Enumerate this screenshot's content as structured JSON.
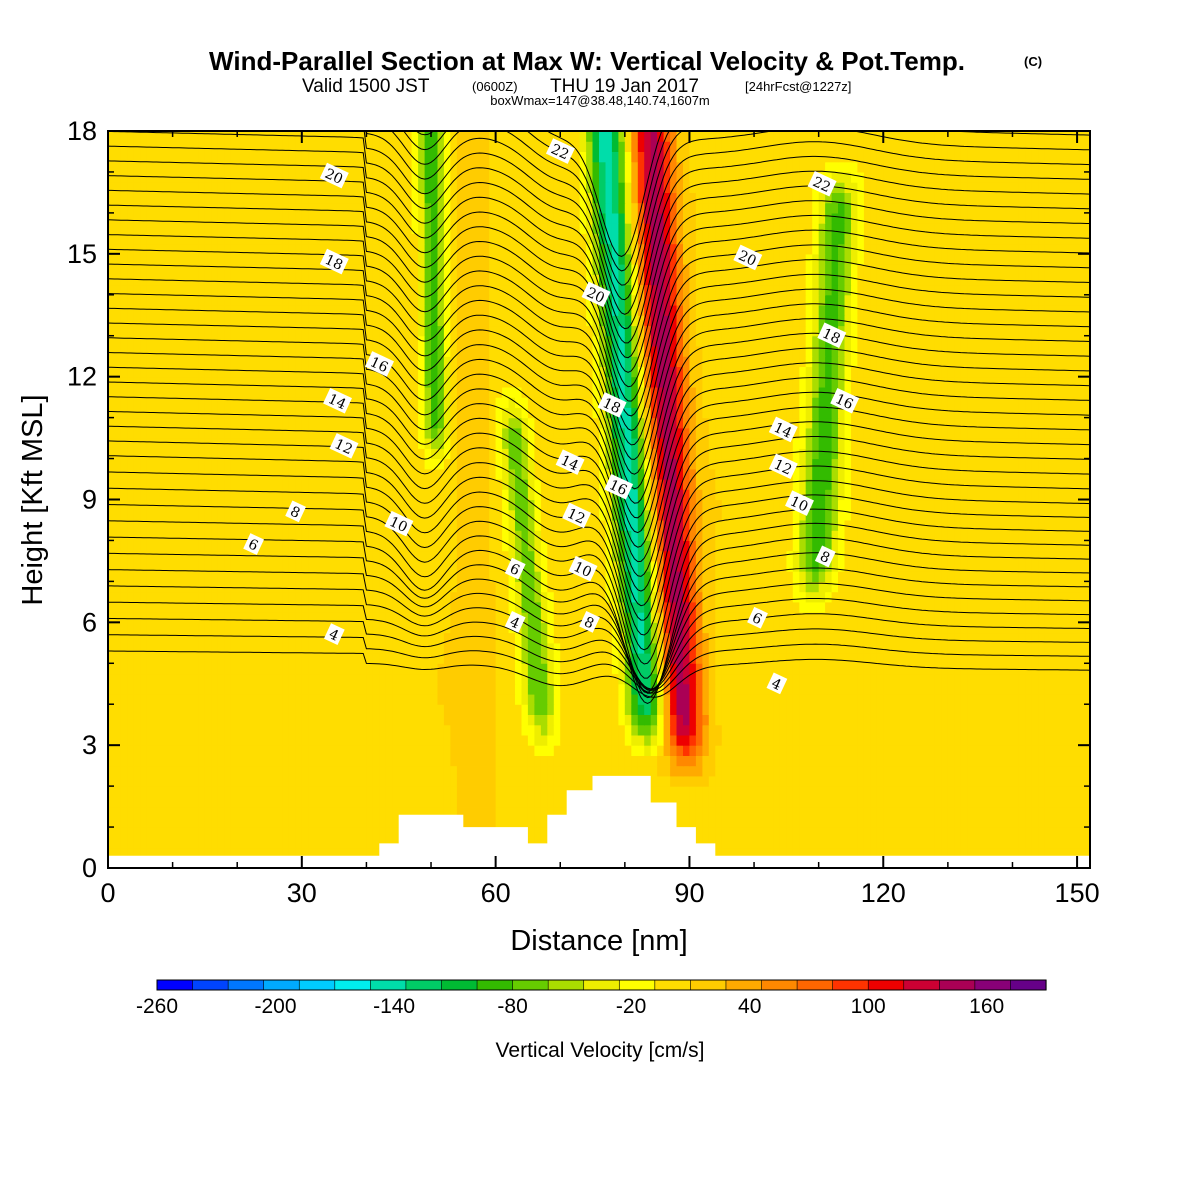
{
  "title": {
    "main": "Wind-Parallel Section at Max W: Vertical Velocity & Pot.Temp.",
    "copyright": "(C)",
    "valid_prefix": "Valid 1500 JST",
    "valid_utc": "(0600Z)",
    "valid_date": "THU 19 Jan 2017",
    "forecast": "[24hrFcst@1227z]",
    "boxline": "boxWmax=147@38.48,140.74,1607m"
  },
  "colors": {
    "background_field": "#FFCC00",
    "contour": "#000000",
    "terrain": "#FFFFFF"
  },
  "chart_data": {
    "type": "heatmap",
    "xlabel": "Distance [nm]",
    "ylabel": "Height [Kft MSL]",
    "xlim": [
      0,
      152
    ],
    "ylim": [
      0,
      18
    ],
    "x_ticks": [
      0,
      30,
      60,
      90,
      120,
      150
    ],
    "y_ticks": [
      0,
      3,
      6,
      9,
      12,
      15,
      18
    ],
    "colorbar": {
      "title": "Vertical Velocity [cm/s]",
      "min": -260,
      "max": 190,
      "step": 20,
      "tick_values": [
        -260,
        -200,
        -140,
        -80,
        -20,
        40,
        100,
        160
      ],
      "tick_labels": [
        "-260",
        "-200",
        "-140",
        "-80",
        "-20",
        "40",
        "100",
        "160"
      ],
      "colors": [
        "#0000FF",
        "#0044FF",
        "#0077FF",
        "#00AAFF",
        "#00CCFF",
        "#00EEEE",
        "#00DDAA",
        "#00CC66",
        "#00BB33",
        "#33BB00",
        "#66CC00",
        "#AADD00",
        "#EEEE00",
        "#FFFF00",
        "#FFDD00",
        "#FFCC00",
        "#FFAA00",
        "#FF8800",
        "#FF6600",
        "#FF3300",
        "#EE0000",
        "#CC0033",
        "#AA0055",
        "#880077",
        "#660088"
      ]
    },
    "terrain": [
      [
        0,
        0.3
      ],
      [
        42,
        0.3
      ],
      [
        42,
        0.6
      ],
      [
        45,
        0.6
      ],
      [
        45,
        1.3
      ],
      [
        55,
        1.3
      ],
      [
        55,
        1.0
      ],
      [
        65,
        1.0
      ],
      [
        65,
        0.6
      ],
      [
        68,
        0.6
      ],
      [
        68,
        1.3
      ],
      [
        71,
        1.3
      ],
      [
        71,
        1.9
      ],
      [
        75,
        1.9
      ],
      [
        75,
        2.25
      ],
      [
        84,
        2.25
      ],
      [
        84,
        1.6
      ],
      [
        88,
        1.6
      ],
      [
        88,
        1.0
      ],
      [
        91,
        1.0
      ],
      [
        91,
        0.6
      ],
      [
        94,
        0.6
      ],
      [
        94,
        0.3
      ],
      [
        152,
        0.3
      ]
    ],
    "w_features": [
      {
        "x": 84,
        "z0": 3.5,
        "z1": 18,
        "x_lean": 0.35,
        "half_width": 3.2,
        "value": 190
      },
      {
        "x": 77,
        "z0": 4.0,
        "z1": 18,
        "x_lean": 0.45,
        "half_width": 3.0,
        "value": -130
      },
      {
        "x": 50,
        "z0": 11.0,
        "z1": 18,
        "x_lean": 0.1,
        "half_width": 2.0,
        "value": -70
      },
      {
        "x": 113,
        "z0": 7.5,
        "z1": 16,
        "x_lean": -0.4,
        "half_width": 3.0,
        "value": -70
      },
      {
        "x": 56,
        "z0": 1.5,
        "z1": 18,
        "x_lean": 0.05,
        "half_width": 2.6,
        "value": 55
      },
      {
        "x": 63,
        "z0": 4.0,
        "z1": 10.5,
        "x_lean": 0.6,
        "half_width": 2.4,
        "value": -55
      }
    ],
    "theta_levels": [
      4,
      6,
      8,
      10,
      12,
      14,
      16,
      18,
      20,
      22
    ],
    "contour_labels": [
      {
        "text": "22",
        "x": 70.0,
        "y": 17.5
      },
      {
        "text": "22",
        "x": 110.5,
        "y": 16.7
      },
      {
        "text": "20",
        "x": 35.0,
        "y": 16.9
      },
      {
        "text": "20",
        "x": 75.5,
        "y": 14.0
      },
      {
        "text": "20",
        "x": 99.0,
        "y": 14.9
      },
      {
        "text": "18",
        "x": 35.0,
        "y": 14.8
      },
      {
        "text": "18",
        "x": 78.0,
        "y": 11.3
      },
      {
        "text": "18",
        "x": 112.0,
        "y": 13.0
      },
      {
        "text": "16",
        "x": 42.0,
        "y": 12.3
      },
      {
        "text": "16",
        "x": 79.0,
        "y": 9.3
      },
      {
        "text": "16",
        "x": 114.0,
        "y": 11.4
      },
      {
        "text": "14",
        "x": 35.5,
        "y": 11.4
      },
      {
        "text": "14",
        "x": 71.5,
        "y": 9.9
      },
      {
        "text": "14",
        "x": 104.5,
        "y": 10.7
      },
      {
        "text": "12",
        "x": 36.5,
        "y": 10.3
      },
      {
        "text": "12",
        "x": 72.5,
        "y": 8.6
      },
      {
        "text": "12",
        "x": 104.5,
        "y": 9.8
      },
      {
        "text": "10",
        "x": 45.0,
        "y": 8.4
      },
      {
        "text": "10",
        "x": 73.5,
        "y": 7.3
      },
      {
        "text": "10",
        "x": 107.0,
        "y": 8.9
      },
      {
        "text": "8",
        "x": 29.0,
        "y": 8.7
      },
      {
        "text": "8",
        "x": 74.5,
        "y": 6.0
      },
      {
        "text": "8",
        "x": 111.0,
        "y": 7.6
      },
      {
        "text": "6",
        "x": 22.5,
        "y": 7.9
      },
      {
        "text": "6",
        "x": 63.0,
        "y": 7.3
      },
      {
        "text": "6",
        "x": 100.5,
        "y": 6.1
      },
      {
        "text": "4",
        "x": 35.0,
        "y": 5.7
      },
      {
        "text": "4",
        "x": 63.0,
        "y": 6.0
      },
      {
        "text": "4",
        "x": 103.5,
        "y": 4.5
      }
    ]
  }
}
